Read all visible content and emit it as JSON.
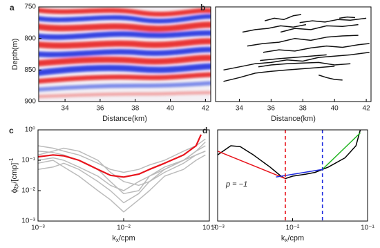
{
  "chart_data": [
    {
      "type": "heatmap",
      "panel": "a",
      "x_label": "Distance(km)",
      "y_label": "Depth(m)",
      "xlim": [
        32.5,
        42.3
      ],
      "ylim": [
        900,
        750
      ],
      "xticks": [
        34,
        36,
        38,
        40,
        42
      ],
      "yticks": [
        750,
        800,
        850,
        900
      ]
    },
    {
      "type": "line",
      "panel": "b",
      "x_label": "Distance(km)",
      "xlim": [
        32.5,
        42.3
      ],
      "ylim": [
        900,
        750
      ],
      "xticks": [
        34,
        36,
        38,
        40,
        42
      ],
      "series": [
        {
          "color": "#111111",
          "x": [
            35.6,
            36.2,
            36.8,
            37.4,
            37.9
          ],
          "values": [
            772,
            768,
            770,
            764,
            762
          ]
        },
        {
          "color": "#111111",
          "x": [
            34.2,
            35,
            35.8,
            36.6,
            37.4,
            38.2
          ],
          "values": [
            790,
            786,
            784,
            780,
            782,
            778
          ]
        },
        {
          "color": "#111111",
          "x": [
            36.6,
            37.5,
            38.5,
            39.5,
            40.5,
            41.5
          ],
          "values": [
            790,
            784,
            786,
            780,
            781,
            778
          ]
        },
        {
          "color": "#111111",
          "x": [
            37.8,
            38.6,
            39.4,
            40.2,
            41,
            42
          ],
          "values": [
            775,
            772,
            774,
            770,
            771,
            768
          ]
        },
        {
          "color": "#111111",
          "x": [
            40.3,
            40.8,
            41.3
          ],
          "values": [
            768,
            766,
            767
          ]
        },
        {
          "color": "#111111",
          "x": [
            34.5,
            35.5,
            36.5,
            37.5,
            38.5,
            39.5,
            40.5,
            41.5
          ],
          "values": [
            812,
            808,
            806,
            800,
            803,
            798,
            796,
            795
          ]
        },
        {
          "color": "#111111",
          "x": [
            35.5,
            36.5,
            37.5,
            38.5,
            39.5,
            40.5,
            41.5,
            42.2
          ],
          "values": [
            822,
            818,
            820,
            815,
            812,
            814,
            810,
            808
          ]
        },
        {
          "color": "#111111",
          "x": [
            33,
            34,
            35,
            36,
            37,
            38,
            39,
            40,
            41,
            42.2
          ],
          "values": [
            850,
            845,
            840,
            838,
            834,
            836,
            830,
            828,
            826,
            822
          ]
        },
        {
          "color": "#111111",
          "x": [
            33,
            34,
            35,
            36,
            37,
            38,
            39,
            40
          ],
          "values": [
            868,
            862,
            855,
            852,
            850,
            848,
            846,
            844
          ]
        },
        {
          "color": "#111111",
          "x": [
            35.2,
            36,
            37,
            38,
            39,
            40,
            41
          ],
          "values": [
            845,
            842,
            840,
            839,
            838,
            842,
            840
          ]
        },
        {
          "color": "#111111",
          "x": [
            35.3,
            36.5,
            37.5,
            38.5,
            39.5
          ],
          "values": [
            835,
            832,
            830,
            828,
            826
          ]
        },
        {
          "color": "#111111",
          "x": [
            39,
            39.5,
            40,
            40.5
          ],
          "values": [
            858,
            862,
            865,
            866
          ]
        }
      ]
    },
    {
      "type": "line",
      "panel": "c",
      "xlog": true,
      "ylog": true,
      "x_label": {
        "main": "k",
        "sub": "x",
        "rest": "/cpm"
      },
      "y_label": {
        "main": "ϕ",
        "sub": "ξx",
        "rest": "/[cmp]",
        "sup": "-1"
      },
      "xlim": [
        0.001,
        0.1
      ],
      "ylim": [
        0.001,
        1
      ],
      "xticks": [
        {
          "value": 0.001,
          "label": "10⁻³"
        },
        {
          "value": 0.01,
          "label": "10⁻²"
        },
        {
          "value": 0.1,
          "label": "10⁻¹"
        }
      ],
      "yticks": [
        {
          "value": 0.001,
          "label": "10⁻³"
        },
        {
          "value": 0.01,
          "label": "10⁻²"
        },
        {
          "value": 0.1,
          "label": "10⁻¹"
        },
        {
          "value": 1,
          "label": "10⁰"
        }
      ],
      "series": [
        {
          "color": "#bbbbbb",
          "x": [
            0.001,
            0.0015,
            0.002,
            0.003,
            0.005,
            0.007,
            0.01,
            0.015,
            0.02,
            0.03,
            0.05,
            0.07,
            0.09
          ],
          "values": [
            0.3,
            0.25,
            0.2,
            0.15,
            0.08,
            0.05,
            0.04,
            0.05,
            0.07,
            0.1,
            0.2,
            0.3,
            0.5
          ]
        },
        {
          "color": "#bbbbbb",
          "x": [
            0.001,
            0.0015,
            0.002,
            0.003,
            0.005,
            0.007,
            0.01,
            0.015,
            0.02,
            0.03,
            0.05,
            0.07,
            0.09
          ],
          "values": [
            0.1,
            0.12,
            0.1,
            0.06,
            0.03,
            0.015,
            0.01,
            0.02,
            0.03,
            0.06,
            0.1,
            0.2,
            0.3
          ]
        },
        {
          "color": "#bbbbbb",
          "x": [
            0.001,
            0.0015,
            0.002,
            0.003,
            0.005,
            0.007,
            0.01,
            0.015,
            0.02,
            0.03,
            0.05,
            0.07,
            0.09
          ],
          "values": [
            0.2,
            0.18,
            0.15,
            0.1,
            0.05,
            0.02,
            0.008,
            0.01,
            0.03,
            0.05,
            0.1,
            0.15,
            0.2
          ]
        },
        {
          "color": "#bbbbbb",
          "x": [
            0.001,
            0.0015,
            0.002,
            0.003,
            0.005,
            0.007,
            0.01,
            0.015,
            0.02,
            0.03,
            0.05,
            0.07,
            0.09
          ],
          "values": [
            0.05,
            0.06,
            0.08,
            0.05,
            0.02,
            0.01,
            0.004,
            0.008,
            0.02,
            0.04,
            0.08,
            0.15,
            0.2
          ]
        },
        {
          "color": "#bbbbbb",
          "x": [
            0.001,
            0.0015,
            0.002,
            0.003,
            0.005,
            0.007,
            0.01,
            0.015,
            0.02,
            0.03,
            0.05,
            0.07,
            0.09
          ],
          "values": [
            0.15,
            0.2,
            0.25,
            0.2,
            0.1,
            0.04,
            0.02,
            0.015,
            0.02,
            0.05,
            0.1,
            0.2,
            0.4
          ]
        },
        {
          "color": "#bbbbbb",
          "x": [
            0.001,
            0.0015,
            0.002,
            0.003,
            0.005,
            0.007,
            0.01,
            0.015,
            0.02,
            0.03,
            0.05,
            0.07,
            0.09
          ],
          "values": [
            0.08,
            0.1,
            0.06,
            0.03,
            0.01,
            0.005,
            0.002,
            0.005,
            0.01,
            0.03,
            0.05,
            0.1,
            0.15
          ]
        },
        {
          "color": "#e8141c",
          "x": [
            0.001,
            0.0015,
            0.002,
            0.003,
            0.005,
            0.007,
            0.01,
            0.015,
            0.02,
            0.03,
            0.05,
            0.07,
            0.08
          ],
          "values": [
            0.13,
            0.15,
            0.14,
            0.1,
            0.05,
            0.032,
            0.028,
            0.035,
            0.05,
            0.08,
            0.15,
            0.3,
            0.7
          ]
        }
      ]
    },
    {
      "type": "line",
      "panel": "d",
      "xlog": true,
      "ylog": true,
      "x_label": {
        "main": "k",
        "sub": "x",
        "rest": "/cpm"
      },
      "xlim": [
        0.001,
        0.1
      ],
      "ylim": [
        0.001,
        1
      ],
      "xticks": [
        {
          "value": 0.001,
          "label": "10⁻³"
        },
        {
          "value": 0.01,
          "label": "10⁻²"
        },
        {
          "value": 0.1,
          "label": "10⁻¹"
        }
      ],
      "annotation": "p = −1",
      "vlines": [
        {
          "x": 0.008,
          "color": "#e8141c"
        },
        {
          "x": 0.025,
          "color": "#1f2be0"
        }
      ],
      "series": [
        {
          "color": "#000000",
          "x": [
            0.001,
            0.0015,
            0.002,
            0.003,
            0.005,
            0.007,
            0.008,
            0.01,
            0.015,
            0.02,
            0.03,
            0.05,
            0.07,
            0.08
          ],
          "values": [
            0.15,
            0.3,
            0.28,
            0.15,
            0.06,
            0.03,
            0.025,
            0.03,
            0.035,
            0.04,
            0.06,
            0.12,
            0.3,
            1
          ]
        },
        {
          "color": "#e8141c",
          "x": [
            0.001,
            0.008
          ],
          "values": [
            0.2,
            0.025
          ]
        },
        {
          "color": "#1f2be0",
          "x": [
            0.006,
            0.025
          ],
          "values": [
            0.028,
            0.05
          ]
        },
        {
          "color": "#22b522",
          "x": [
            0.025,
            0.08
          ],
          "values": [
            0.05,
            0.8
          ]
        }
      ]
    }
  ]
}
